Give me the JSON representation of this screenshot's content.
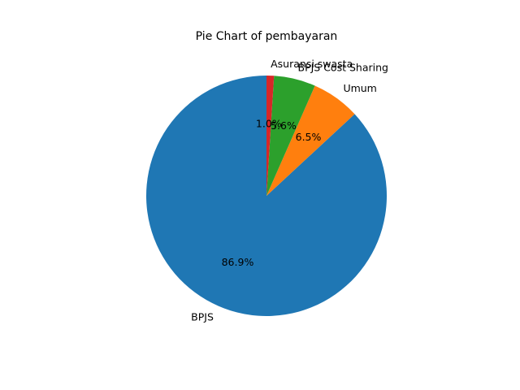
{
  "chart_data": {
    "type": "pie",
    "title": "Pie Chart of pembayaran",
    "start_angle_deg": 90,
    "direction": "counterclockwise",
    "slices": [
      {
        "label": "BPJS",
        "value": 86.9,
        "pct_label": "86.9%",
        "color": "#1f77b4"
      },
      {
        "label": "Umum",
        "value": 6.5,
        "pct_label": "6.5%",
        "color": "#ff7f0e"
      },
      {
        "label": "BPJS Cost Sharing",
        "value": 5.6,
        "pct_label": "5.6%",
        "color": "#2ca02c"
      },
      {
        "label": "Asuransi swasta",
        "value": 1.0,
        "pct_label": "1.0%",
        "color": "#d62728"
      }
    ]
  }
}
